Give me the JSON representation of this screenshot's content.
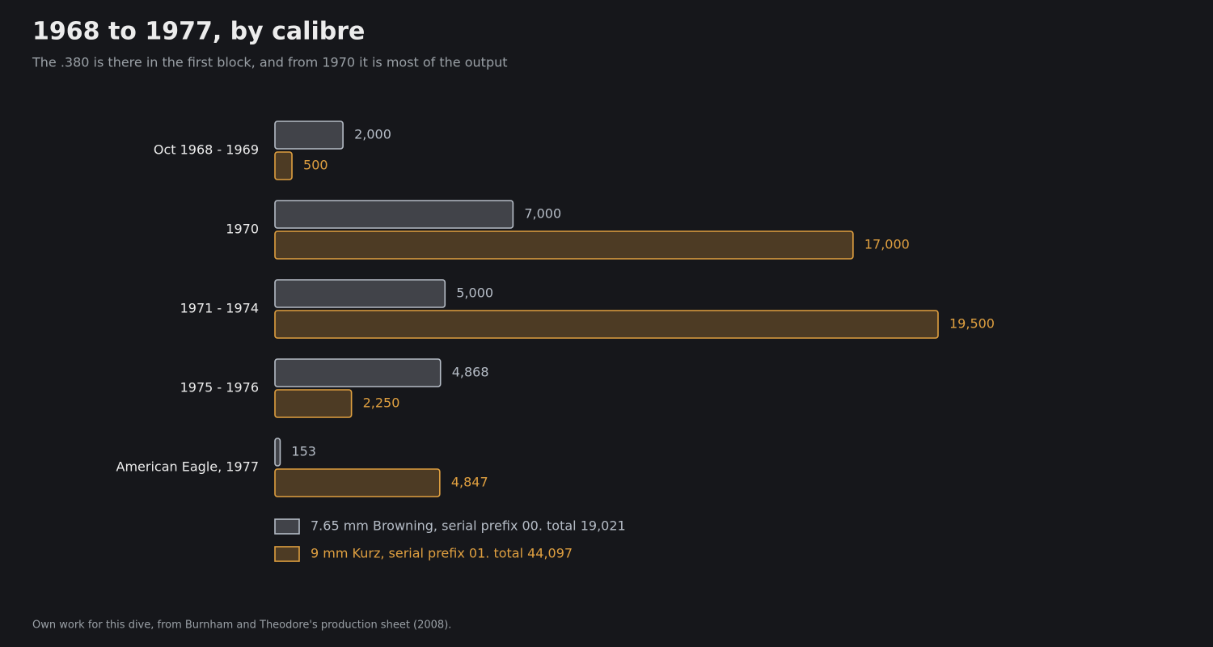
{
  "chart_data": {
    "type": "bar",
    "orientation": "horizontal",
    "title": "1968 to 1977, by calibre",
    "subtitle": "The .380 is there in the first block, and from 1970 it is most of the output",
    "categories": [
      "Oct 1968 - 1969",
      "1970",
      "1971 - 1974",
      "1975 - 1976",
      "American Eagle, 1977"
    ],
    "series": [
      {
        "name": "7.65 mm Browning, serial prefix 00. total 19,021",
        "color": "#b5bcc6",
        "values": [
          2000,
          7000,
          5000,
          4868,
          153
        ],
        "value_labels": [
          "2,000",
          "7,000",
          "5,000",
          "4,868",
          "153"
        ]
      },
      {
        "name": "9 mm Kurz, serial prefix 01. total 44,097",
        "color": "#e0a040",
        "values": [
          500,
          17000,
          19500,
          2250,
          4847
        ],
        "value_labels": [
          "500",
          "17,000",
          "19,500",
          "2,250",
          "4,847"
        ]
      }
    ],
    "footer": "Own work for this dive, from Burnham and Theodore's production sheet (2008)."
  }
}
